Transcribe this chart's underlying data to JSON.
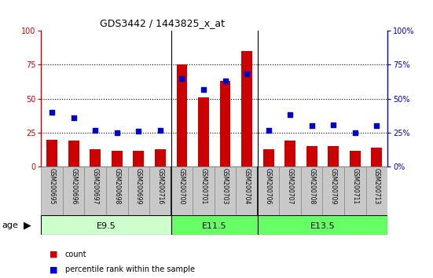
{
  "title": "GDS3442 / 1443825_x_at",
  "samples": [
    "GSM200695",
    "GSM200696",
    "GSM200697",
    "GSM200698",
    "GSM200699",
    "GSM200716",
    "GSM200700",
    "GSM200701",
    "GSM200703",
    "GSM200704",
    "GSM200706",
    "GSM200707",
    "GSM200708",
    "GSM200709",
    "GSM200711",
    "GSM200713"
  ],
  "counts": [
    20,
    19,
    13,
    12,
    12,
    13,
    75,
    51,
    63,
    85,
    13,
    19,
    15,
    15,
    12,
    14
  ],
  "percentiles": [
    40,
    36,
    27,
    25,
    26,
    27,
    65,
    57,
    63,
    68,
    27,
    38,
    30,
    31,
    25,
    30
  ],
  "group_colors": [
    "#ccffcc",
    "#66ff66",
    "#66ff66"
  ],
  "group_labels": [
    "E9.5",
    "E11.5",
    "E13.5"
  ],
  "group_starts": [
    0,
    6,
    10
  ],
  "group_ends": [
    6,
    10,
    16
  ],
  "group_dividers": [
    6,
    10
  ],
  "ylim": [
    0,
    100
  ],
  "yticks": [
    0,
    25,
    50,
    75,
    100
  ],
  "bar_color": "#cc0000",
  "dot_color": "#0000cc",
  "bar_width": 0.5,
  "dot_size": 18,
  "axis_color_left": "#cc0000",
  "axis_color_right": "#0000cc",
  "tick_label_bg": "#c8c8c8",
  "tick_label_box_ec": "#888888",
  "legend_count_label": "count",
  "legend_pct_label": "percentile rank within the sample",
  "age_label": "age"
}
